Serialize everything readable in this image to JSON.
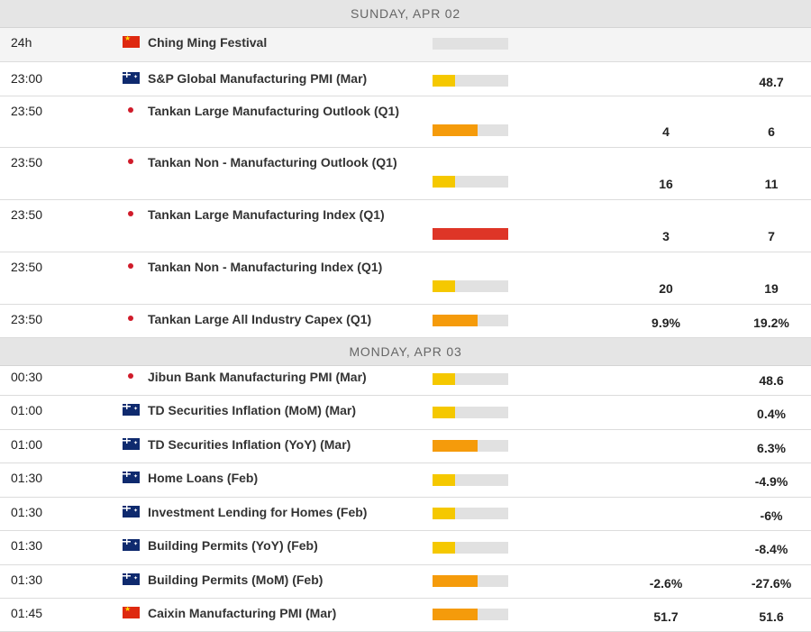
{
  "calendar": {
    "days": [
      {
        "label": "SUNDAY, APR 02",
        "events": [
          {
            "time": "24h",
            "country": "cn",
            "name": "Ching Ming Festival",
            "volatility": 0,
            "actual": "",
            "previous": ""
          },
          {
            "time": "23:00",
            "country": "au",
            "name": "S&P Global Manufacturing PMI (Mar)",
            "volatility": 0.3,
            "actual": "",
            "previous": "48.7"
          },
          {
            "time": "23:50",
            "country": "jp",
            "name": "Tankan Large Manufacturing Outlook (Q1)",
            "volatility": 0.6,
            "actual": "4",
            "previous": "6"
          },
          {
            "time": "23:50",
            "country": "jp",
            "name": "Tankan Non - Manufacturing Outlook (Q1)",
            "volatility": 0.3,
            "actual": "16",
            "previous": "11"
          },
          {
            "time": "23:50",
            "country": "jp",
            "name": "Tankan Large Manufacturing Index (Q1)",
            "volatility": 1.0,
            "actual": "3",
            "previous": "7"
          },
          {
            "time": "23:50",
            "country": "jp",
            "name": "Tankan Non - Manufacturing Index (Q1)",
            "volatility": 0.3,
            "actual": "20",
            "previous": "19"
          },
          {
            "time": "23:50",
            "country": "jp",
            "name": "Tankan Large All Industry Capex (Q1)",
            "volatility": 0.6,
            "actual": "9.9%",
            "previous": "19.2%"
          }
        ]
      },
      {
        "label": "MONDAY, APR 03",
        "events": [
          {
            "time": "00:30",
            "country": "jp",
            "name": "Jibun Bank Manufacturing PMI (Mar)",
            "volatility": 0.3,
            "actual": "",
            "previous": "48.6"
          },
          {
            "time": "01:00",
            "country": "au",
            "name": "TD Securities Inflation (MoM) (Mar)",
            "volatility": 0.3,
            "actual": "",
            "previous": "0.4%"
          },
          {
            "time": "01:00",
            "country": "au",
            "name": "TD Securities Inflation (YoY) (Mar)",
            "volatility": 0.6,
            "actual": "",
            "previous": "6.3%"
          },
          {
            "time": "01:30",
            "country": "au",
            "name": "Home Loans (Feb)",
            "volatility": 0.3,
            "actual": "",
            "previous": "-4.9%"
          },
          {
            "time": "01:30",
            "country": "au",
            "name": "Investment Lending for Homes (Feb)",
            "volatility": 0.3,
            "actual": "",
            "previous": "-6%"
          },
          {
            "time": "01:30",
            "country": "au",
            "name": "Building Permits (YoY) (Feb)",
            "volatility": 0.3,
            "actual": "",
            "previous": "-8.4%"
          },
          {
            "time": "01:30",
            "country": "au",
            "name": "Building Permits (MoM) (Feb)",
            "volatility": 0.6,
            "actual": "-2.6%",
            "previous": "-27.6%"
          },
          {
            "time": "01:45",
            "country": "cn",
            "name": "Caixin Manufacturing PMI (Mar)",
            "volatility": 0.6,
            "actual": "51.7",
            "previous": "51.6"
          }
        ]
      }
    ]
  },
  "colors": {
    "low": "#f5c800",
    "medium": "#f59b0b",
    "high": "#de3527",
    "track": "#e1e1e1"
  }
}
